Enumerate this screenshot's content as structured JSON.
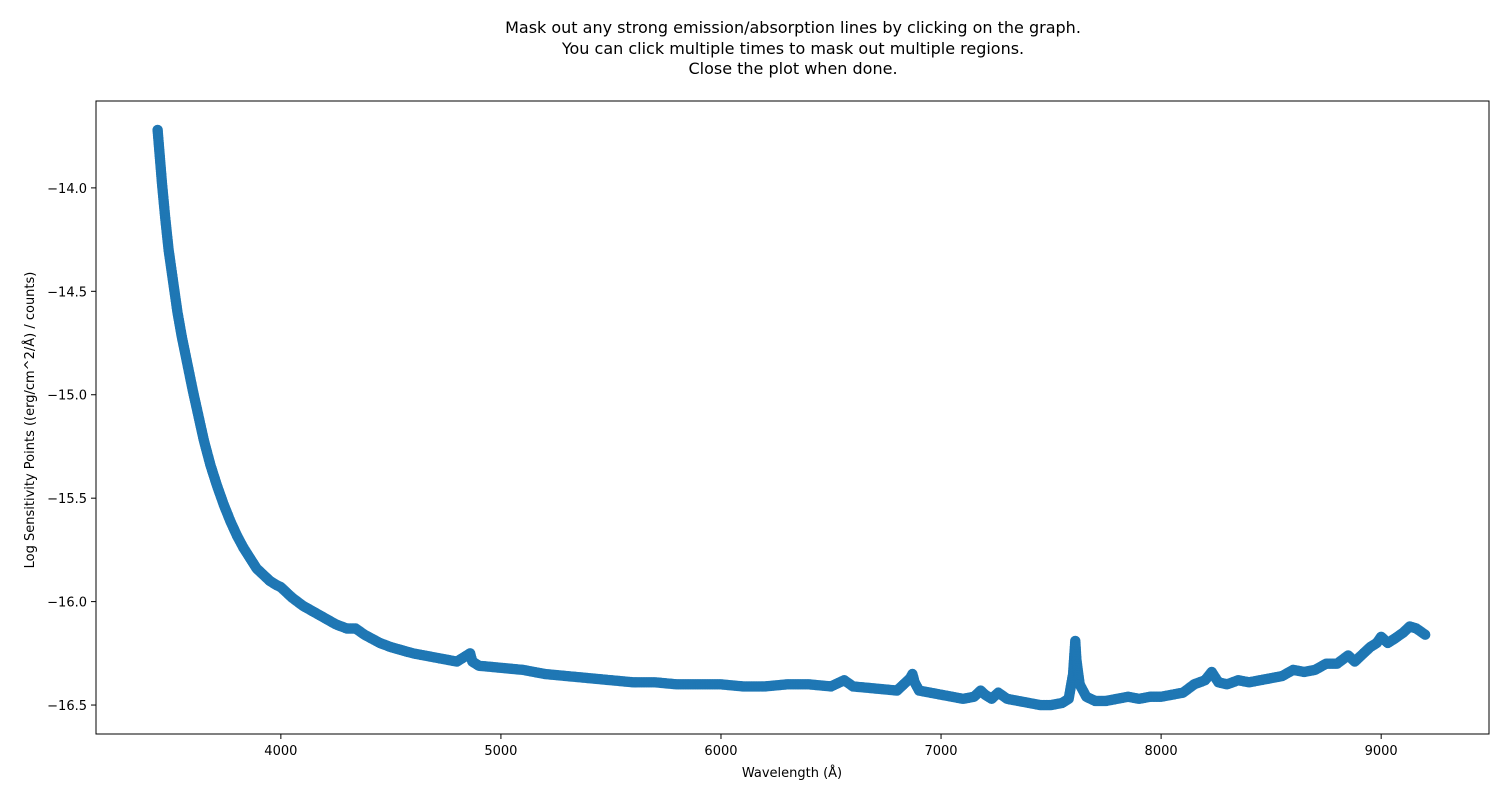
{
  "chart_data": {
    "type": "scatter",
    "title_lines": [
      "Mask out any strong emission/absorption lines by clicking on the graph.",
      "You can click multiple times to mask out multiple regions.",
      "Close the plot when done."
    ],
    "xlabel": "Wavelength (Å)",
    "ylabel": "Log Sensitivity Points ((erg/cm^2/Å) / counts)",
    "xlim": [
      3160,
      9490
    ],
    "ylim": [
      -16.64,
      -13.58
    ],
    "x_ticks": [
      {
        "value": 4000,
        "label": "4000"
      },
      {
        "value": 5000,
        "label": "5000"
      },
      {
        "value": 6000,
        "label": "6000"
      },
      {
        "value": 7000,
        "label": "7000"
      },
      {
        "value": 8000,
        "label": "8000"
      },
      {
        "value": 9000,
        "label": "9000"
      }
    ],
    "y_ticks": [
      {
        "value": -14.0,
        "label": "−14.0"
      },
      {
        "value": -14.5,
        "label": "−14.5"
      },
      {
        "value": -15.0,
        "label": "−15.0"
      },
      {
        "value": -15.5,
        "label": "−15.5"
      },
      {
        "value": -16.0,
        "label": "−16.0"
      },
      {
        "value": -16.5,
        "label": "−16.5"
      }
    ],
    "grid": false,
    "marker_color": "#1f77b4",
    "series": [
      {
        "x": [
          3440,
          3450,
          3460,
          3475,
          3490,
          3510,
          3530,
          3550,
          3575,
          3600,
          3625,
          3650,
          3680,
          3710,
          3740,
          3770,
          3800,
          3830,
          3860,
          3890,
          3920,
          3950,
          3980,
          4000,
          4050,
          4100,
          4150,
          4200,
          4250,
          4300,
          4340,
          4380,
          4450,
          4500,
          4600,
          4700,
          4800,
          4860,
          4870,
          4900,
          5000,
          5100,
          5200,
          5300,
          5400,
          5500,
          5600,
          5700,
          5800,
          5900,
          6000,
          6100,
          6200,
          6300,
          6400,
          6500,
          6560,
          6600,
          6700,
          6800,
          6860,
          6870,
          6880,
          6900,
          6950,
          7000,
          7050,
          7100,
          7150,
          7180,
          7200,
          7230,
          7260,
          7300,
          7350,
          7400,
          7450,
          7500,
          7550,
          7580,
          7600,
          7610,
          7615,
          7630,
          7660,
          7700,
          7750,
          7800,
          7850,
          7900,
          7950,
          8000,
          8050,
          8100,
          8150,
          8200,
          8230,
          8260,
          8300,
          8350,
          8400,
          8450,
          8500,
          8550,
          8600,
          8650,
          8700,
          8750,
          8800,
          8850,
          8880,
          8900,
          8950,
          8980,
          9000,
          9030,
          9060,
          9100,
          9130,
          9160,
          9200
        ],
        "y": [
          -13.72,
          -13.85,
          -13.98,
          -14.15,
          -14.3,
          -14.45,
          -14.6,
          -14.72,
          -14.85,
          -14.98,
          -15.1,
          -15.22,
          -15.34,
          -15.44,
          -15.53,
          -15.61,
          -15.68,
          -15.74,
          -15.79,
          -15.84,
          -15.87,
          -15.9,
          -15.92,
          -15.93,
          -15.98,
          -16.02,
          -16.05,
          -16.08,
          -16.11,
          -16.13,
          -16.13,
          -16.16,
          -16.2,
          -16.22,
          -16.25,
          -16.27,
          -16.29,
          -16.25,
          -16.29,
          -16.31,
          -16.32,
          -16.33,
          -16.35,
          -16.36,
          -16.37,
          -16.38,
          -16.39,
          -16.39,
          -16.4,
          -16.4,
          -16.4,
          -16.41,
          -16.41,
          -16.4,
          -16.4,
          -16.41,
          -16.38,
          -16.41,
          -16.42,
          -16.43,
          -16.37,
          -16.35,
          -16.39,
          -16.43,
          -16.44,
          -16.45,
          -16.46,
          -16.47,
          -16.46,
          -16.43,
          -16.45,
          -16.47,
          -16.44,
          -16.47,
          -16.48,
          -16.49,
          -16.5,
          -16.5,
          -16.49,
          -16.47,
          -16.35,
          -16.19,
          -16.28,
          -16.4,
          -16.46,
          -16.48,
          -16.48,
          -16.47,
          -16.46,
          -16.47,
          -16.46,
          -16.46,
          -16.45,
          -16.44,
          -16.4,
          -16.38,
          -16.34,
          -16.39,
          -16.4,
          -16.38,
          -16.39,
          -16.38,
          -16.37,
          -16.36,
          -16.33,
          -16.34,
          -16.33,
          -16.3,
          -16.3,
          -16.26,
          -16.29,
          -16.27,
          -16.22,
          -16.2,
          -16.17,
          -16.2,
          -16.18,
          -16.15,
          -16.12,
          -16.13,
          -16.16
        ]
      }
    ]
  }
}
